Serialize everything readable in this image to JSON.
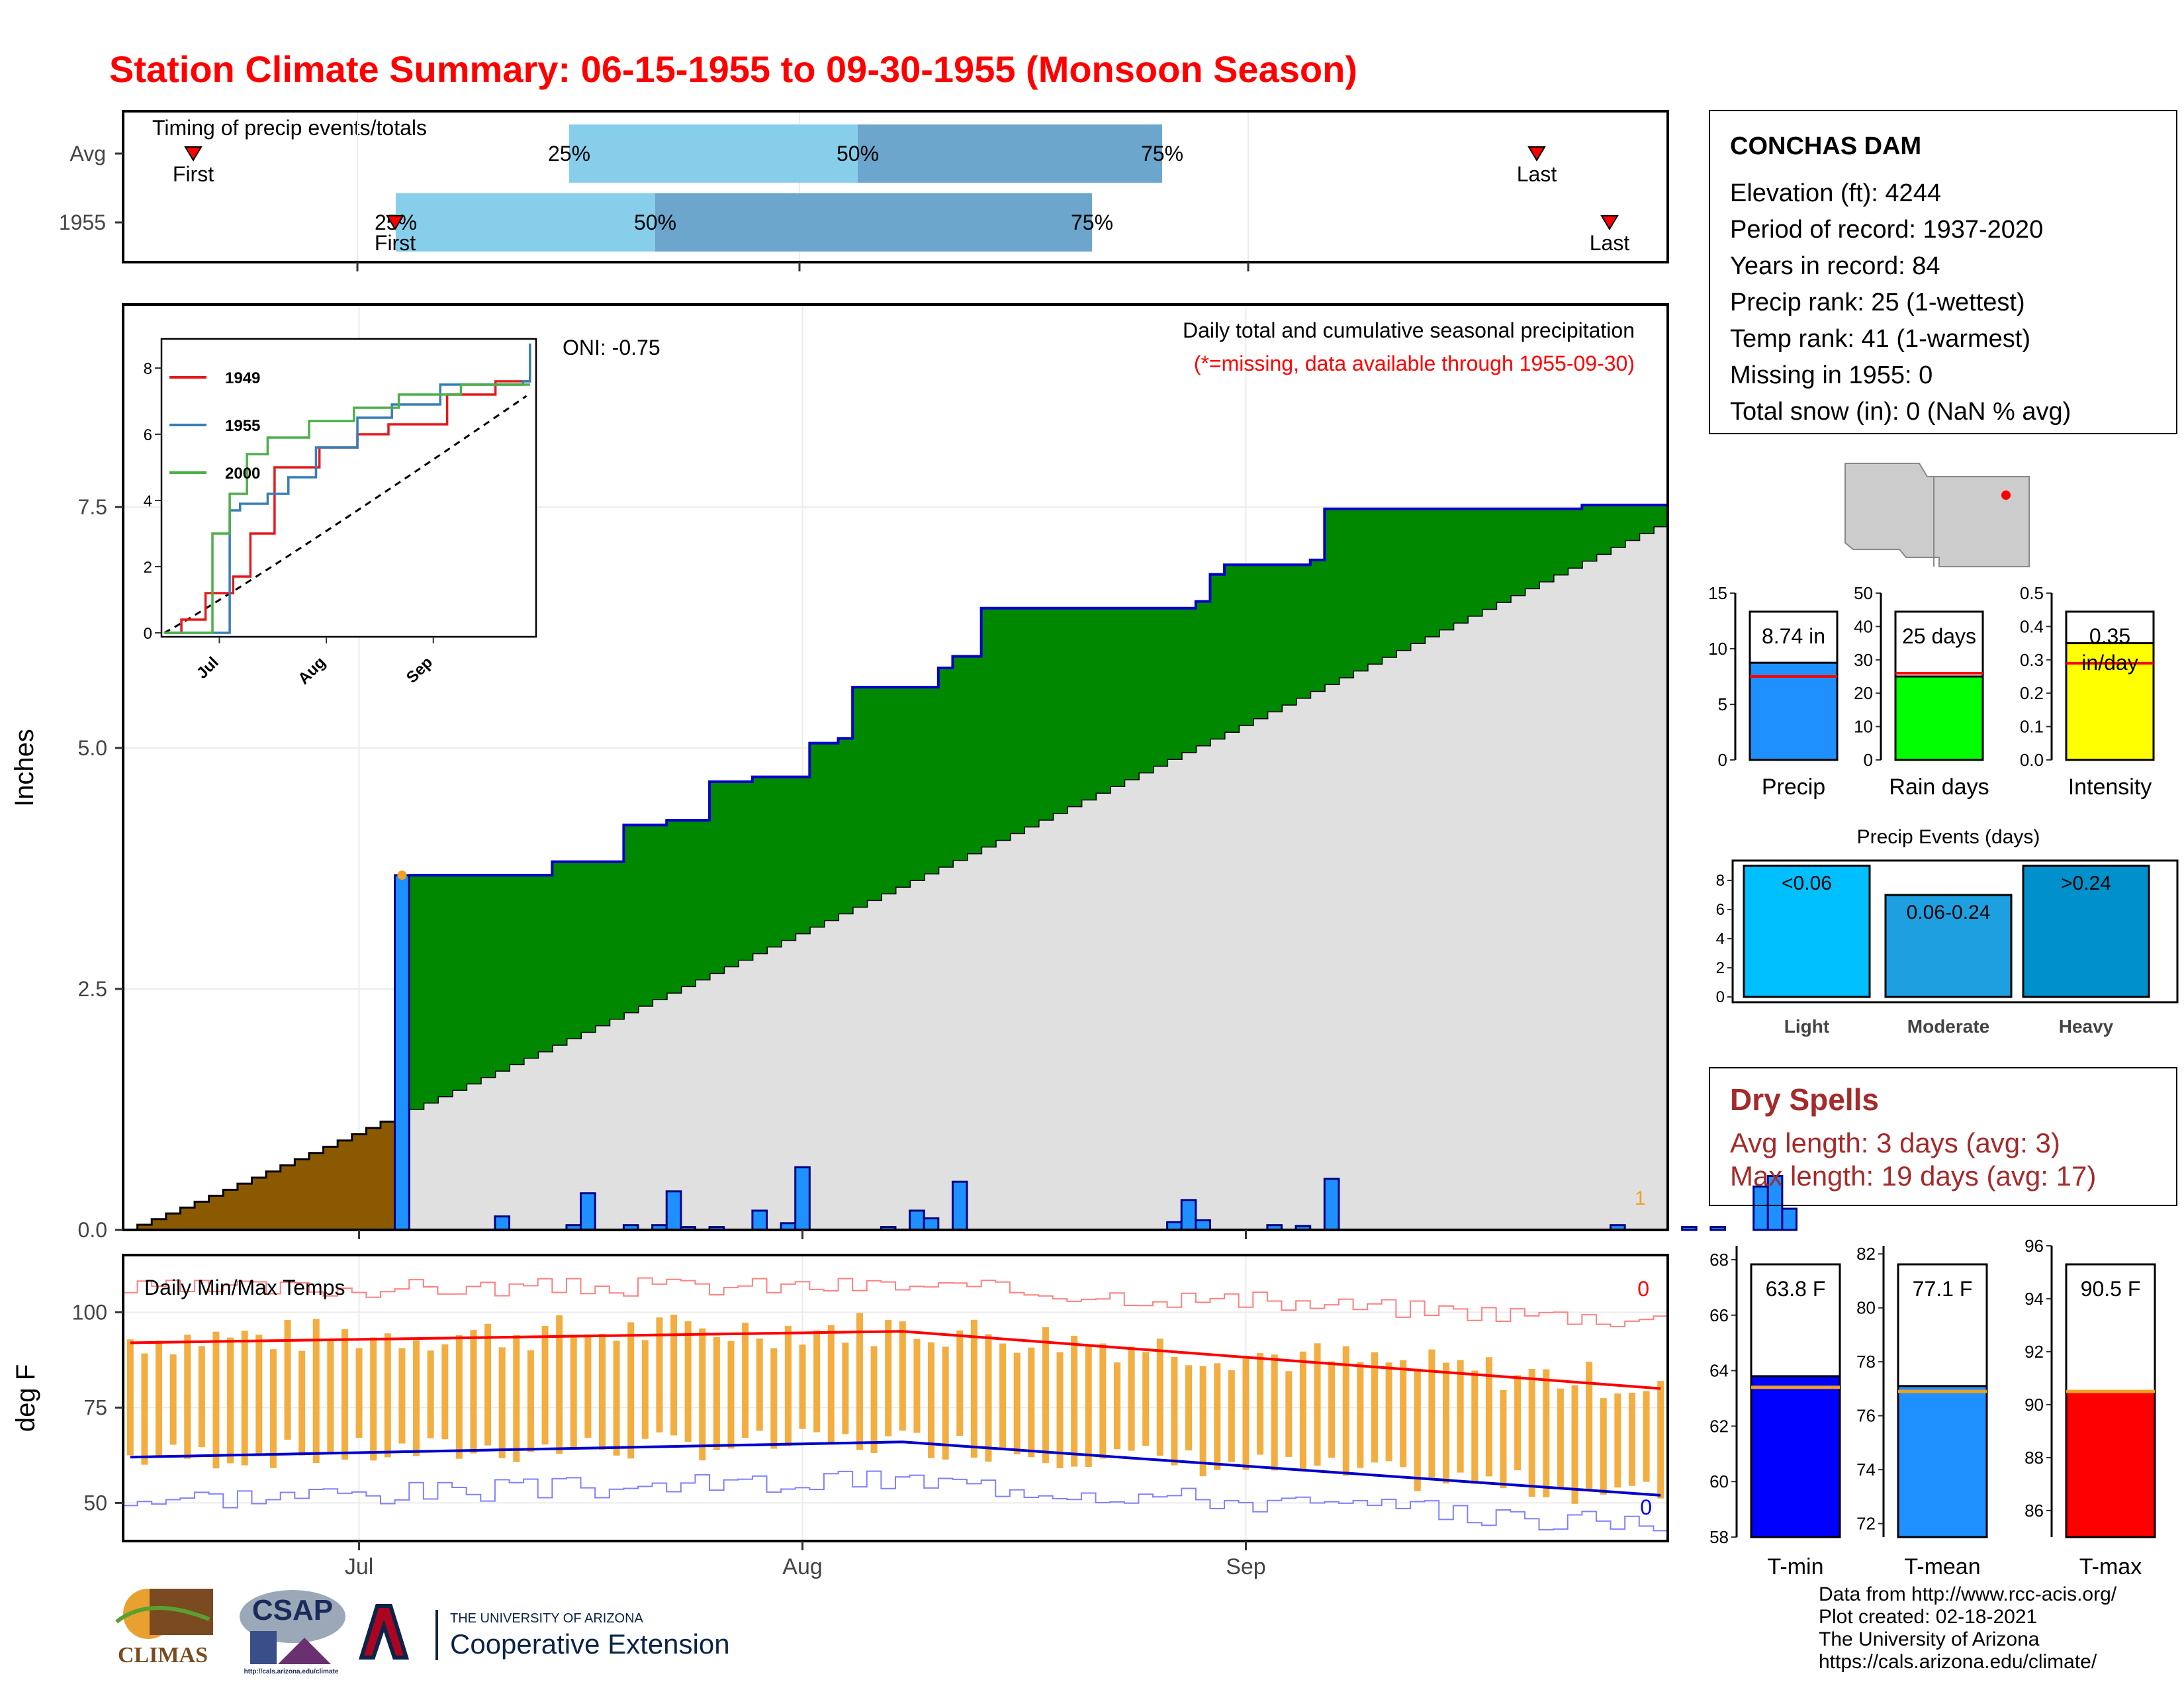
{
  "title": "Station Climate Summary: 06-15-1955 to 09-30-1955 (Monsoon Season)",
  "colors": {
    "title": "#ff0000",
    "blue_line": "#0000cc",
    "bar_blue": "#1e90ff",
    "green": "#008800",
    "brown": "#8b5a00",
    "gray_fill": "#e0e0e0",
    "orange": "#f0a020",
    "tmin": "#0000ff",
    "tmean": "#1e90ff",
    "tmax": "#ff0000",
    "rain_days": "#00ff00",
    "intensity": "#ffff00",
    "light": "#00bfff",
    "moderate": "#1ea0e0",
    "heavy": "#0090cc",
    "dry_text": "#a52a2a"
  },
  "timing": {
    "title": "Timing of precip events/totals",
    "rows": [
      {
        "label": "Avg",
        "first_label": "First",
        "last_label": "Last",
        "p25_label": "25%",
        "p50_label": "50%",
        "p75_label": "75%",
        "first_day": 3,
        "p25_day": 60,
        "p50_day": 77,
        "p75_day": 94,
        "last_day": 125
      },
      {
        "label": "1955",
        "first_label": "First",
        "last_label": "Last",
        "p25_label": "25%",
        "p50_label": "50%",
        "p75_label": "75%",
        "first_day": 48,
        "p25_day": 50,
        "p50_day": 65,
        "p75_day": 89,
        "last_day": 129
      }
    ]
  },
  "main_panel": {
    "ylabel": "Inches",
    "y_ticks": [
      "0.0",
      "2.5",
      "5.0",
      "7.5"
    ],
    "annotation_title": "Daily total and cumulative seasonal precipitation",
    "annotation_missing": "(*=missing, data available through 1955-09-30)",
    "oni": "ONI: -0.75",
    "missing_count": "1"
  },
  "inset": {
    "y_ticks": [
      "0",
      "2",
      "4",
      "6",
      "8"
    ],
    "x_ticks": [
      "Jul",
      "Aug",
      "Sep"
    ],
    "legend": [
      "1949",
      "1955",
      "2000"
    ],
    "legend_colors": [
      "#e41a1c",
      "#377eb8",
      "#4daf4a"
    ]
  },
  "temp_panel": {
    "title": "Daily Min/Max Temps",
    "ylabel": "deg F",
    "y_ticks": [
      "50",
      "75",
      "100"
    ],
    "x_ticks": [
      "Jul",
      "Aug",
      "Sep"
    ],
    "max_missing": "0",
    "min_missing": "0"
  },
  "station": {
    "name": "CONCHAS DAM",
    "lines": [
      "Elevation (ft): 4244",
      "Period of record: 1937-2020",
      "Years in record: 84",
      "Precip rank: 25 (1-wettest)",
      "Temp rank: 41 (1-warmest)",
      "Missing in 1955: 0",
      "Total snow (in): 0 (NaN % avg)"
    ]
  },
  "summary_bars": [
    {
      "label": "Precip",
      "value_label": "8.74 in",
      "value": 8.74,
      "avg": 7.5,
      "ylim": [
        0,
        15
      ],
      "ticks": [
        "0",
        "5",
        "10",
        "15"
      ],
      "color": "#1e90ff"
    },
    {
      "label": "Rain days",
      "value_label": "25 days",
      "value": 25,
      "avg": 26,
      "ylim": [
        0,
        50
      ],
      "ticks": [
        "0",
        "10",
        "20",
        "30",
        "40",
        "50"
      ],
      "color": "#00ff00"
    },
    {
      "label": "Intensity",
      "value_label": "0.35 in/day",
      "value": 0.35,
      "avg": 0.29,
      "ylim": [
        0,
        0.5
      ],
      "ticks": [
        "0.0",
        "0.1",
        "0.2",
        "0.3",
        "0.4",
        "0.5"
      ],
      "color": "#ffff00"
    }
  ],
  "events": {
    "title": "Precip Events (days)",
    "ticks": [
      "0",
      "2",
      "4",
      "6",
      "8"
    ],
    "categories": [
      "Light",
      "Moderate",
      "Heavy"
    ],
    "ranges": [
      "<0.06",
      "0.06-0.24",
      ">0.24"
    ],
    "values": [
      9,
      7,
      9
    ]
  },
  "dry_spells": {
    "title": "Dry Spells",
    "avg_line": "Avg length: 3 days (avg: 3)",
    "max_line": "Max length: 19 days (avg: 17)"
  },
  "temp_bars": [
    {
      "label": "T-min",
      "value_label": "63.8 F",
      "value": 63.8,
      "avg": 63.4,
      "ylim": [
        58,
        68.5
      ],
      "ticks": [
        "58",
        "60",
        "62",
        "64",
        "66",
        "68"
      ],
      "color": "#0000ff"
    },
    {
      "label": "T-mean",
      "value_label": "77.1 F",
      "value": 77.1,
      "avg": 76.9,
      "ylim": [
        71.5,
        82.3
      ],
      "ticks": [
        "72",
        "74",
        "76",
        "78",
        "80",
        "82"
      ],
      "color": "#1e90ff"
    },
    {
      "label": "T-max",
      "value_label": "90.5 F",
      "value": 90.5,
      "avg": 90.5,
      "ylim": [
        85,
        96
      ],
      "ticks": [
        "86",
        "88",
        "90",
        "92",
        "94",
        "96"
      ],
      "color": "#ff0000"
    }
  ],
  "credits": [
    "Data from http://www.rcc-acis.org/",
    "Plot created: 02-18-2021",
    "The University of Arizona",
    "https://cals.arizona.edu/climate/"
  ],
  "logos": {
    "climas": "CLIMAS",
    "csap": "CSAP",
    "csap_url": "http://cals.arizona.edu/climate",
    "ua_small": "THE UNIVERSITY OF ARIZONA",
    "ua_big": "Cooperative Extension"
  },
  "chart_data": [
    {
      "type": "area",
      "title": "Daily total and cumulative seasonal precipitation",
      "ylabel": "Inches",
      "x_range": [
        "1955-06-15",
        "1955-09-30"
      ],
      "ylim": [
        0,
        9.6
      ],
      "cumulative_1955_steps": [
        {
          "day": 20,
          "value": 3.68
        },
        {
          "day": 30,
          "value": 3.82
        },
        {
          "day": 35,
          "value": 4.2
        },
        {
          "day": 38,
          "value": 4.25
        },
        {
          "day": 41,
          "value": 4.65
        },
        {
          "day": 44,
          "value": 4.7
        },
        {
          "day": 48,
          "value": 5.05
        },
        {
          "day": 50,
          "value": 5.1
        },
        {
          "day": 51,
          "value": 5.63
        },
        {
          "day": 55,
          "value": 5.63
        },
        {
          "day": 57,
          "value": 5.83
        },
        {
          "day": 58,
          "value": 5.95
        },
        {
          "day": 60,
          "value": 6.45
        },
        {
          "day": 75,
          "value": 6.52
        },
        {
          "day": 76,
          "value": 6.8
        },
        {
          "day": 77,
          "value": 6.9
        },
        {
          "day": 83,
          "value": 6.95
        },
        {
          "day": 84,
          "value": 7.48
        },
        {
          "day": 102,
          "value": 7.52
        },
        {
          "day": 114,
          "value": 7.58
        },
        {
          "day": 116,
          "value": 8.02
        },
        {
          "day": 117,
          "value": 8.58
        },
        {
          "day": 118,
          "value": 8.74
        }
      ],
      "avg_cumulative_end": 7.3,
      "daily_precip": [
        {
          "day": 19,
          "value": 3.68
        },
        {
          "day": 26,
          "value": 0.14
        },
        {
          "day": 31,
          "value": 0.05
        },
        {
          "day": 32,
          "value": 0.38
        },
        {
          "day": 35,
          "value": 0.05
        },
        {
          "day": 37,
          "value": 0.05
        },
        {
          "day": 38,
          "value": 0.4
        },
        {
          "day": 39,
          "value": 0.03
        },
        {
          "day": 41,
          "value": 0.03
        },
        {
          "day": 44,
          "value": 0.2
        },
        {
          "day": 46,
          "value": 0.07
        },
        {
          "day": 47,
          "value": 0.65
        },
        {
          "day": 53,
          "value": 0.03
        },
        {
          "day": 55,
          "value": 0.2
        },
        {
          "day": 56,
          "value": 0.12
        },
        {
          "day": 58,
          "value": 0.5
        },
        {
          "day": 73,
          "value": 0.08
        },
        {
          "day": 74,
          "value": 0.31
        },
        {
          "day": 75,
          "value": 0.1
        },
        {
          "day": 80,
          "value": 0.05
        },
        {
          "day": 82,
          "value": 0.04
        },
        {
          "day": 84,
          "value": 0.53
        },
        {
          "day": 104,
          "value": 0.05
        },
        {
          "day": 109,
          "value": 0.03
        },
        {
          "day": 111,
          "value": 0.03
        },
        {
          "day": 114,
          "value": 0.45
        },
        {
          "day": 115,
          "value": 0.56
        },
        {
          "day": 116,
          "value": 0.22
        }
      ]
    },
    {
      "type": "line",
      "title": "Daily Min/Max Temps",
      "ylabel": "deg F",
      "x_range": [
        "1955-06-15",
        "1955-09-30"
      ],
      "ylim": [
        40,
        115
      ],
      "avg_max_start": 92,
      "avg_max_mid": 95,
      "avg_max_end": 80,
      "avg_min_start": 62,
      "avg_min_mid": 66,
      "avg_min_end": 52
    }
  ]
}
